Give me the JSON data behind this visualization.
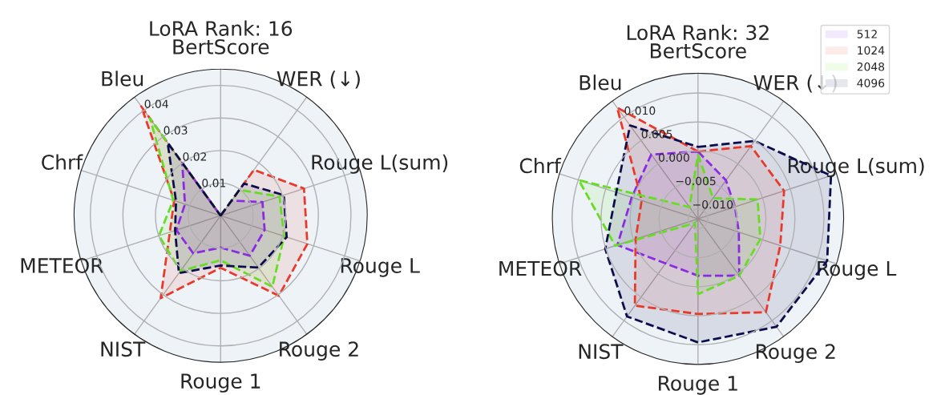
{
  "chart_data": [
    {
      "type": "radar",
      "title": "LoRA Rank: 16",
      "categories": [
        "BertScore",
        "WER (↓)",
        "Rouge L(sum)",
        "Rouge L",
        "Rouge 2",
        "Rouge 1",
        "NIST",
        "METEOR",
        "Chrf",
        "Bleu"
      ],
      "ylim": [
        0,
        0.045
      ],
      "yticks": [
        0.01,
        0.02,
        0.03,
        0.04
      ],
      "grid": true,
      "legend": false,
      "marker": "none",
      "line_style": "dashed",
      "series": [
        {
          "color": "#8a2be2",
          "values": [
            0.0,
            0.0057,
            0.0135,
            0.0142,
            0.0152,
            0.0098,
            0.0143,
            0.0143,
            0.0115,
            0.0201
          ]
        },
        {
          "color": "#e8392a",
          "values": [
            0.0,
            0.0174,
            0.0269,
            0.028,
            0.0304,
            0.016,
            0.0313,
            0.0164,
            0.015,
            0.0415
          ]
        },
        {
          "color": "#66dd22",
          "values": [
            0.0,
            0.0098,
            0.019,
            0.0205,
            0.027,
            0.0137,
            0.021,
            0.0199,
            0.0153,
            0.0369
          ]
        },
        {
          "color": "#0d0d4d",
          "values": [
            0.0,
            0.0122,
            0.0204,
            0.0213,
            0.0197,
            0.0153,
            0.0218,
            0.0147,
            0.0144,
            0.0277
          ]
        }
      ]
    },
    {
      "type": "radar",
      "title": "LoRA Rank: 32",
      "categories": [
        "BertScore",
        "WER (↓)",
        "Rouge L(sum)",
        "Rouge L",
        "Rouge 2",
        "Rouge 1",
        "NIST",
        "METEOR",
        "Chrf",
        "Bleu"
      ],
      "ylim": [
        -0.0117,
        0.0134
      ],
      "yticks": [
        {
          "value": -0.01,
          "label": "−0.010"
        },
        {
          "value": -0.005,
          "label": "−0.005"
        },
        {
          "value": 0.0,
          "label": "0.000"
        },
        {
          "value": 0.005,
          "label": "0.005"
        },
        {
          "value": 0.01,
          "label": "0.010"
        }
      ],
      "grid": true,
      "legend": "top right",
      "marker": "none",
      "line_style": "dashed",
      "series": [
        {
          "name": "512",
          "color": "#8a2be2",
          "values": [
            -0.0001,
            -0.0035,
            -0.005,
            -0.0043,
            0.0004,
            -0.0019,
            -0.0022,
            0.0029,
            0.0003,
            0.002
          ]
        },
        {
          "name": "1024",
          "color": "#e8392a",
          "values": [
            -0.0001,
            0.0038,
            0.0039,
            0.0032,
            0.0082,
            0.0047,
            0.0068,
            -0.0004,
            -0.0015,
            0.012
          ]
        },
        {
          "name": "2048",
          "color": "#66dd22",
          "values": [
            -0.0006,
            -0.0073,
            -0.0009,
            -0.0004,
            0.0004,
            0.0013,
            -0.0108,
            0.0033,
            0.0099,
            -0.0092
          ]
        },
        {
          "name": "4096",
          "color": "#0d0d4d",
          "values": [
            0.0007,
            0.0049,
            0.0124,
            0.0117,
            0.0113,
            0.0096,
            0.0091,
            0.0051,
            0.0031,
            0.0082
          ]
        }
      ]
    }
  ]
}
